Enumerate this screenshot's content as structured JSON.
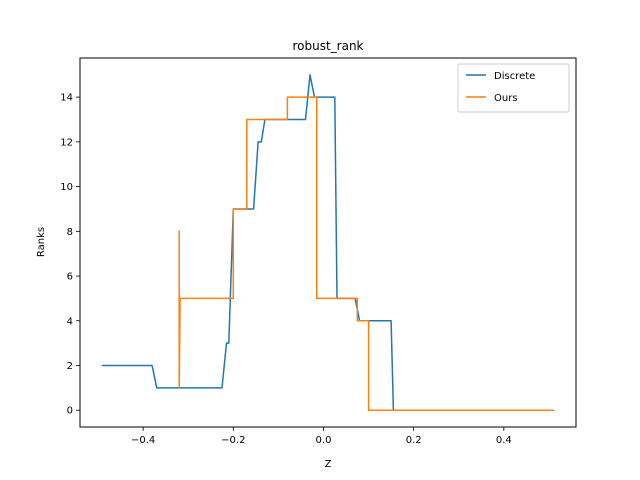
{
  "chart_data": {
    "type": "line",
    "title": "robust_rank",
    "xlabel": "Z",
    "ylabel": "Ranks",
    "xlim": [
      -0.54,
      0.56
    ],
    "ylim": [
      -0.75,
      15.75
    ],
    "xticks": [
      -0.4,
      -0.2,
      0.0,
      0.2,
      0.4
    ],
    "xtick_labels": [
      "−0.4",
      "−0.2",
      "0.0",
      "0.2",
      "0.4"
    ],
    "yticks": [
      0,
      2,
      4,
      6,
      8,
      10,
      12,
      14
    ],
    "ytick_labels": [
      "0",
      "2",
      "4",
      "6",
      "8",
      "10",
      "12",
      "14"
    ],
    "grid": false,
    "legend_position": "top-right",
    "series": [
      {
        "name": "Discrete",
        "color": "#1f77b4",
        "points": [
          [
            -0.49,
            2
          ],
          [
            -0.38,
            2
          ],
          [
            -0.37,
            1
          ],
          [
            -0.225,
            1
          ],
          [
            -0.215,
            3
          ],
          [
            -0.21,
            3
          ],
          [
            -0.2,
            9
          ],
          [
            -0.155,
            9
          ],
          [
            -0.145,
            12
          ],
          [
            -0.138,
            12
          ],
          [
            -0.13,
            13
          ],
          [
            -0.1,
            13
          ],
          [
            -0.085,
            13
          ],
          [
            -0.04,
            13
          ],
          [
            -0.03,
            15
          ],
          [
            -0.02,
            14
          ],
          [
            0.025,
            14
          ],
          [
            0.03,
            5
          ],
          [
            0.07,
            5
          ],
          [
            0.08,
            4
          ],
          [
            0.15,
            4
          ],
          [
            0.155,
            0
          ],
          [
            0.51,
            0
          ]
        ]
      },
      {
        "name": "Ours",
        "color": "#ff7f0e",
        "points": [
          [
            -0.32,
            8
          ],
          [
            -0.32,
            1
          ],
          [
            -0.318,
            5
          ],
          [
            -0.2,
            5
          ],
          [
            -0.2,
            9
          ],
          [
            -0.17,
            9
          ],
          [
            -0.17,
            13
          ],
          [
            -0.08,
            13
          ],
          [
            -0.08,
            14
          ],
          [
            -0.015,
            14
          ],
          [
            -0.015,
            5
          ],
          [
            0.075,
            5
          ],
          [
            0.075,
            4
          ],
          [
            0.1,
            4
          ],
          [
            0.1,
            0
          ],
          [
            0.51,
            0
          ]
        ]
      }
    ]
  }
}
